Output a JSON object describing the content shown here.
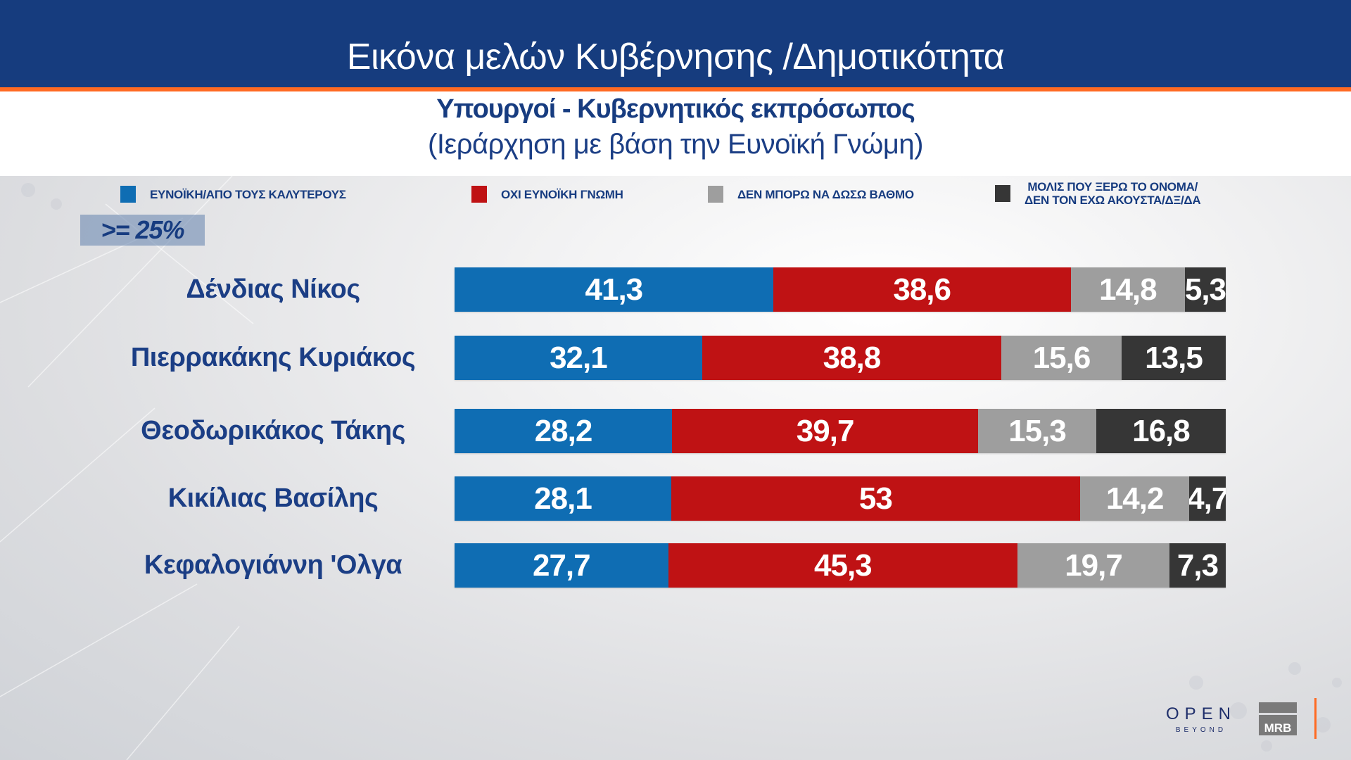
{
  "header": {
    "title": "Εικόνα μελών Κυβέρνησης /Δημοτικότητα",
    "subtitle": "Υπουργοί - Κυβερνητικός εκπρόσωπος",
    "subtitle2": "(Ιεράρχηση με βάση την Ευνοϊκή Γνώμη)"
  },
  "colors": {
    "header_bg": "#163c7e",
    "accent_orange": "#ff6a22",
    "text_navy": "#1b3e85",
    "favorable": "#0f6db3",
    "unfavorable": "#bf1214",
    "cannot_rate": "#9e9e9e",
    "unknown": "#363636"
  },
  "legend": [
    {
      "label": "ΕΥΝΟΪΚΗ/ΑΠΟ ΤΟΥΣ ΚΑΛΥΤΕΡΟΥΣ",
      "color": "#0f6db3"
    },
    {
      "label": "ΟΧΙ ΕΥΝΟΪΚΗ ΓΝΩΜΗ",
      "color": "#bf1214"
    },
    {
      "label": "ΔΕΝ ΜΠΟΡΩ ΝΑ ΔΩΣΩ ΒΑΘΜΟ",
      "color": "#9e9e9e"
    },
    {
      "label_line1": "ΜΟΛΙΣ ΠΟΥ ΞΕΡΩ ΤΟ ΟΝΟΜΑ/",
      "label_line2": "ΔΕΝ ΤΟΝ ΕΧΩ ΑΚΟΥΣΤΑ/ΔΞ/ΔΑ",
      "color": "#363636"
    }
  ],
  "threshold_badge": ">= 25%",
  "rows": [
    {
      "name": "Δένδιας Νίκος",
      "values": [
        "41,3",
        "38,6",
        "14,8",
        "5,3"
      ]
    },
    {
      "name": "Πιερρακάκης Κυριάκος",
      "values": [
        "32,1",
        "38,8",
        "15,6",
        "13,5"
      ]
    },
    {
      "name": "Θεοδωρικάκος Τάκης",
      "values": [
        "28,2",
        "39,7",
        "15,3",
        "16,8"
      ]
    },
    {
      "name": "Κικίλιας Βασίλης",
      "values": [
        "28,1",
        "53",
        "14,2",
        "4,7"
      ]
    },
    {
      "name": "Κεφαλογιάννη 'Ολγα",
      "values": [
        "27,7",
        "45,3",
        "19,7",
        "7,3"
      ]
    }
  ],
  "footer": {
    "logo_open": "OPEN",
    "logo_open_sub": "BEYOND",
    "logo_mrb": "MRB"
  },
  "chart_data": {
    "type": "bar",
    "orientation": "horizontal",
    "stacked": true,
    "title": "Εικόνα μελών Κυβέρνησης /Δημοτικότητα",
    "subtitle": "Υπουργοί - Κυβερνητικός εκπρόσωπος (Ιεράρχηση με βάση την Ευνοϊκή Γνώμη)",
    "annotation": ">= 25%",
    "categories": [
      "Δένδιας Νίκος",
      "Πιερρακάκης Κυριάκος",
      "Θεοδωρικάκος Τάκης",
      "Κικίλιας Βασίλης",
      "Κεφαλογιάννη 'Ολγα"
    ],
    "series": [
      {
        "name": "ΕΥΝΟΪΚΗ/ΑΠΟ ΤΟΥΣ ΚΑΛΥΤΕΡΟΥΣ",
        "color": "#0f6db3",
        "values": [
          41.3,
          32.1,
          28.2,
          28.1,
          27.7
        ]
      },
      {
        "name": "ΟΧΙ ΕΥΝΟΪΚΗ ΓΝΩΜΗ",
        "color": "#bf1214",
        "values": [
          38.6,
          38.8,
          39.7,
          53.0,
          45.3
        ]
      },
      {
        "name": "ΔΕΝ ΜΠΟΡΩ ΝΑ ΔΩΣΩ ΒΑΘΜΟ",
        "color": "#9e9e9e",
        "values": [
          14.8,
          15.6,
          15.3,
          14.2,
          19.7
        ]
      },
      {
        "name": "ΜΟΛΙΣ ΠΟΥ ΞΕΡΩ ΤΟ ΟΝΟΜΑ/ΔΕΝ ΤΟΝ ΕΧΩ ΑΚΟΥΣΤΑ/ΔΞ/ΔΑ",
        "color": "#363636",
        "values": [
          5.3,
          13.5,
          16.8,
          4.7,
          7.3
        ]
      }
    ],
    "xlabel": "",
    "ylabel": "",
    "xlim": [
      0,
      100
    ],
    "legend_position": "top",
    "grid": false,
    "data_labels": true
  }
}
